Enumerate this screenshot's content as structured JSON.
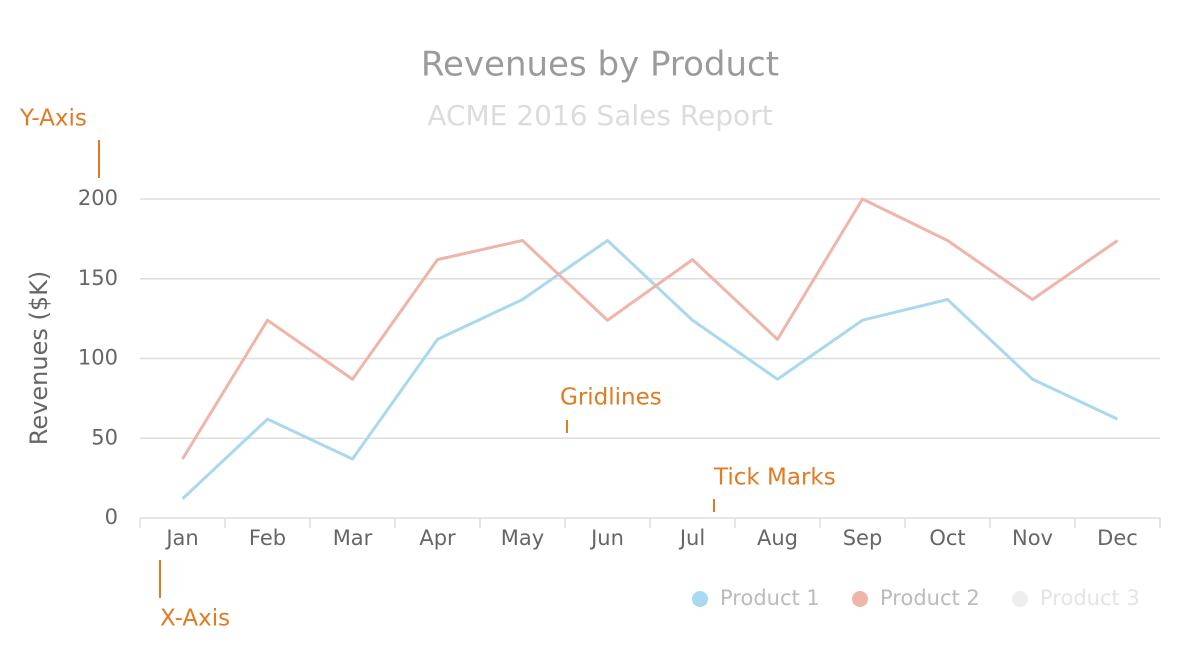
{
  "chart_data": {
    "type": "line",
    "title": "Revenues by Product",
    "subtitle": "ACME 2016 Sales Report",
    "y_label": "Revenues ($K)",
    "categories": [
      "Jan",
      "Feb",
      "Mar",
      "Apr",
      "May",
      "Jun",
      "Jul",
      "Aug",
      "Sep",
      "Oct",
      "Nov",
      "Dec"
    ],
    "series": [
      {
        "name": "Product 1",
        "color": "#a9d9ee",
        "values": [
          12,
          62,
          37,
          112,
          137,
          174,
          124,
          87,
          124,
          137,
          87,
          62
        ]
      },
      {
        "name": "Product 2",
        "color": "#efb5a9",
        "values": [
          37,
          124,
          87,
          162,
          174,
          124,
          162,
          112,
          200,
          174,
          137,
          174
        ]
      },
      {
        "name": "Product 3",
        "color": "#eeeeee",
        "values": [
          null,
          null,
          null,
          null,
          null,
          null,
          null,
          null,
          null,
          null,
          null,
          null
        ]
      }
    ],
    "ylim": [
      0,
      200
    ],
    "yticks": [
      0,
      50,
      100,
      150,
      200
    ],
    "grid": true,
    "legend": "bottom-right",
    "annotations": [
      "Y-Axis",
      "X-Axis",
      "Gridlines",
      "Tick Marks"
    ]
  }
}
